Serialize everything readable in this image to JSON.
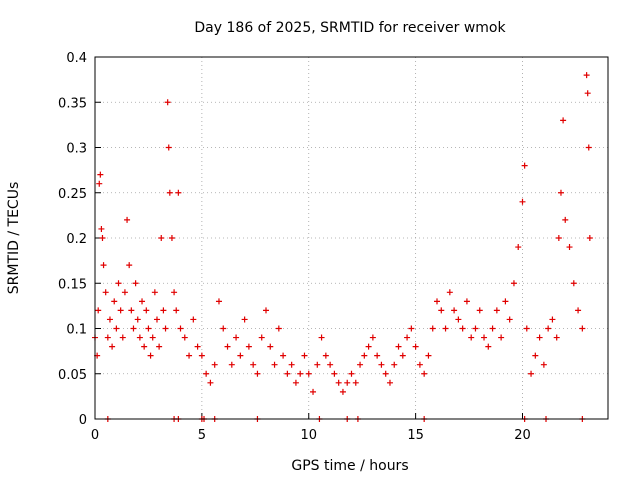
{
  "chart_data": {
    "type": "scatter",
    "title": "Day 186 of 2025, SRMTID for receiver wmok",
    "xlabel": "GPS time / hours",
    "ylabel": "SRMTID / TECUs",
    "xlim": [
      0,
      24
    ],
    "ylim": [
      0,
      0.4
    ],
    "xticks": [
      0,
      5,
      10,
      15,
      20
    ],
    "yticks": [
      0,
      0.05,
      0.1,
      0.15,
      0.2,
      0.25,
      0.3,
      0.35,
      0.4
    ],
    "grid": true,
    "marker": "+",
    "color": "#e00000",
    "series": [
      {
        "name": "SRMTID",
        "points": [
          [
            0.0,
            0.09
          ],
          [
            0.1,
            0.07
          ],
          [
            0.15,
            0.12
          ],
          [
            0.2,
            0.26
          ],
          [
            0.25,
            0.27
          ],
          [
            0.3,
            0.21
          ],
          [
            0.35,
            0.2
          ],
          [
            0.4,
            0.17
          ],
          [
            0.5,
            0.14
          ],
          [
            0.6,
            0.09
          ],
          [
            0.7,
            0.11
          ],
          [
            0.8,
            0.08
          ],
          [
            0.9,
            0.13
          ],
          [
            1.0,
            0.1
          ],
          [
            1.1,
            0.15
          ],
          [
            1.2,
            0.12
          ],
          [
            1.3,
            0.09
          ],
          [
            1.4,
            0.14
          ],
          [
            1.5,
            0.22
          ],
          [
            1.6,
            0.17
          ],
          [
            1.7,
            0.12
          ],
          [
            1.8,
            0.1
          ],
          [
            1.9,
            0.15
          ],
          [
            2.0,
            0.11
          ],
          [
            2.1,
            0.09
          ],
          [
            2.2,
            0.13
          ],
          [
            2.3,
            0.08
          ],
          [
            2.4,
            0.12
          ],
          [
            2.5,
            0.1
          ],
          [
            2.6,
            0.07
          ],
          [
            2.7,
            0.09
          ],
          [
            2.8,
            0.14
          ],
          [
            2.9,
            0.11
          ],
          [
            3.0,
            0.08
          ],
          [
            3.1,
            0.2
          ],
          [
            3.2,
            0.12
          ],
          [
            3.3,
            0.1
          ],
          [
            3.4,
            0.35
          ],
          [
            3.45,
            0.3
          ],
          [
            3.5,
            0.25
          ],
          [
            3.6,
            0.2
          ],
          [
            3.7,
            0.14
          ],
          [
            3.8,
            0.12
          ],
          [
            3.9,
            0.25
          ],
          [
            4.0,
            0.1
          ],
          [
            4.2,
            0.09
          ],
          [
            4.4,
            0.07
          ],
          [
            4.6,
            0.11
          ],
          [
            4.8,
            0.08
          ],
          [
            5.0,
            0.07
          ],
          [
            5.2,
            0.05
          ],
          [
            5.4,
            0.04
          ],
          [
            5.6,
            0.06
          ],
          [
            5.8,
            0.13
          ],
          [
            6.0,
            0.1
          ],
          [
            6.2,
            0.08
          ],
          [
            6.4,
            0.06
          ],
          [
            6.6,
            0.09
          ],
          [
            6.8,
            0.07
          ],
          [
            7.0,
            0.11
          ],
          [
            7.2,
            0.08
          ],
          [
            7.4,
            0.06
          ],
          [
            7.6,
            0.05
          ],
          [
            7.8,
            0.09
          ],
          [
            8.0,
            0.12
          ],
          [
            8.2,
            0.08
          ],
          [
            8.4,
            0.06
          ],
          [
            8.6,
            0.1
          ],
          [
            8.8,
            0.07
          ],
          [
            9.0,
            0.05
          ],
          [
            9.2,
            0.06
          ],
          [
            9.4,
            0.04
          ],
          [
            9.6,
            0.05
          ],
          [
            9.8,
            0.07
          ],
          [
            10.0,
            0.05
          ],
          [
            10.2,
            0.03
          ],
          [
            10.4,
            0.06
          ],
          [
            10.6,
            0.09
          ],
          [
            10.8,
            0.07
          ],
          [
            11.0,
            0.06
          ],
          [
            11.2,
            0.05
          ],
          [
            11.4,
            0.04
          ],
          [
            11.6,
            0.03
          ],
          [
            11.8,
            0.04
          ],
          [
            12.0,
            0.05
          ],
          [
            12.2,
            0.04
          ],
          [
            12.4,
            0.06
          ],
          [
            12.6,
            0.07
          ],
          [
            12.8,
            0.08
          ],
          [
            13.0,
            0.09
          ],
          [
            13.2,
            0.07
          ],
          [
            13.4,
            0.06
          ],
          [
            13.6,
            0.05
          ],
          [
            13.8,
            0.04
          ],
          [
            14.0,
            0.06
          ],
          [
            14.2,
            0.08
          ],
          [
            14.4,
            0.07
          ],
          [
            14.6,
            0.09
          ],
          [
            14.8,
            0.1
          ],
          [
            15.0,
            0.08
          ],
          [
            15.2,
            0.06
          ],
          [
            15.4,
            0.05
          ],
          [
            15.6,
            0.07
          ],
          [
            15.8,
            0.1
          ],
          [
            16.0,
            0.13
          ],
          [
            16.2,
            0.12
          ],
          [
            16.4,
            0.1
          ],
          [
            16.6,
            0.14
          ],
          [
            16.8,
            0.12
          ],
          [
            17.0,
            0.11
          ],
          [
            17.2,
            0.1
          ],
          [
            17.4,
            0.13
          ],
          [
            17.6,
            0.09
          ],
          [
            17.8,
            0.1
          ],
          [
            18.0,
            0.12
          ],
          [
            18.2,
            0.09
          ],
          [
            18.4,
            0.08
          ],
          [
            18.6,
            0.1
          ],
          [
            18.8,
            0.12
          ],
          [
            19.0,
            0.09
          ],
          [
            19.2,
            0.13
          ],
          [
            19.4,
            0.11
          ],
          [
            19.6,
            0.15
          ],
          [
            19.8,
            0.19
          ],
          [
            20.0,
            0.24
          ],
          [
            20.1,
            0.28
          ],
          [
            20.2,
            0.1
          ],
          [
            20.4,
            0.05
          ],
          [
            20.6,
            0.07
          ],
          [
            20.8,
            0.09
          ],
          [
            21.0,
            0.06
          ],
          [
            21.2,
            0.1
          ],
          [
            21.4,
            0.11
          ],
          [
            21.6,
            0.09
          ],
          [
            21.7,
            0.2
          ],
          [
            21.8,
            0.25
          ],
          [
            21.9,
            0.33
          ],
          [
            22.0,
            0.22
          ],
          [
            22.2,
            0.19
          ],
          [
            22.4,
            0.15
          ],
          [
            22.6,
            0.12
          ],
          [
            22.8,
            0.1
          ],
          [
            23.0,
            0.38
          ],
          [
            23.05,
            0.36
          ],
          [
            23.1,
            0.3
          ],
          [
            23.15,
            0.2
          ]
        ]
      }
    ],
    "bottom_markers": [
      0.6,
      3.7,
      3.9,
      5.0,
      5.1,
      5.6,
      7.6,
      10.5,
      11.8,
      12.3,
      15.4,
      20.1,
      21.1,
      22.8
    ]
  }
}
